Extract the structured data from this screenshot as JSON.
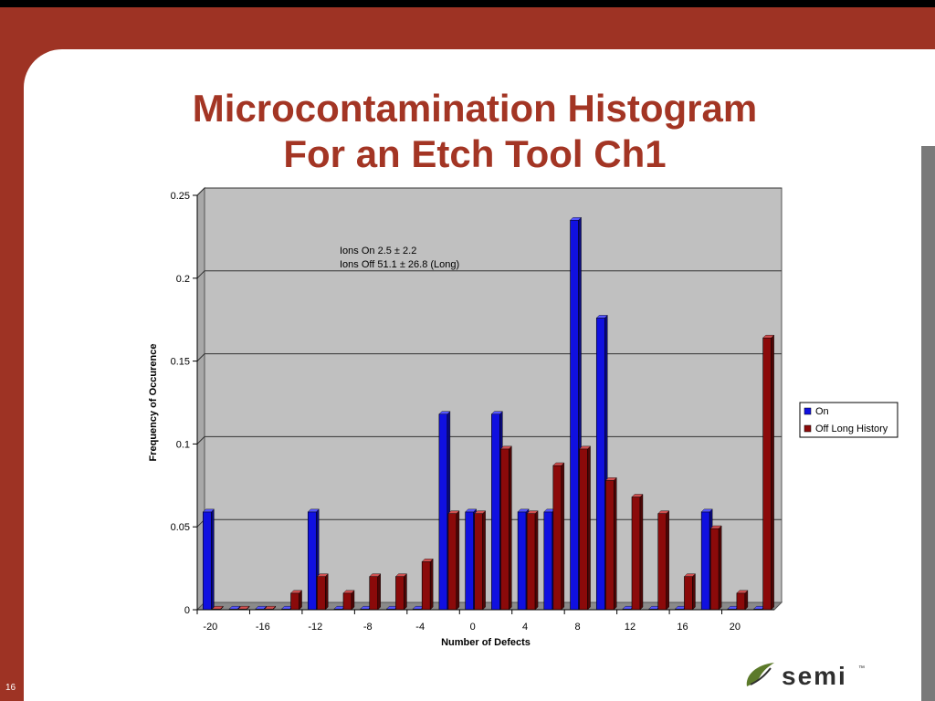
{
  "slide": {
    "title_line1": "Microcontamination Histogram",
    "title_line2": "For an Etch Tool Ch1",
    "slide_number": "16",
    "logo_text": "semi",
    "logo_icon": "leaf-swoosh-icon"
  },
  "colors": {
    "accent": "#9e3324",
    "title": "#a33524",
    "series_on": "#1010e0",
    "series_off": "#8b0a0a",
    "plot_bg": "#c0c0c0"
  },
  "chart_data": {
    "type": "bar",
    "title": "",
    "xlabel": "Number of Defects",
    "ylabel": "Frequency of Occurence",
    "ylim": [
      0,
      0.25
    ],
    "yticks": [
      "0",
      "0.05",
      "0.1",
      "0.15",
      "0.2",
      "0.25"
    ],
    "xtick_labels": [
      "-20",
      "-16",
      "-12",
      "-8",
      "-4",
      "0",
      "4",
      "8",
      "12",
      "16",
      "20"
    ],
    "categories": [
      -20,
      -18,
      -16,
      -14,
      -12,
      -10,
      -8,
      -6,
      -4,
      -2,
      0,
      2,
      4,
      6,
      8,
      10,
      12,
      14,
      16,
      18,
      20,
      22
    ],
    "series": [
      {
        "name": "On",
        "values": [
          0.059,
          0,
          0,
          0,
          0.059,
          0,
          0,
          0,
          0,
          0.118,
          0.059,
          0.118,
          0.059,
          0.059,
          0.235,
          0.176,
          0,
          0,
          0,
          0.059,
          0,
          0
        ]
      },
      {
        "name": "Off Long History",
        "values": [
          0,
          0,
          0,
          0.01,
          0.02,
          0.01,
          0.02,
          0.02,
          0.029,
          0.058,
          0.058,
          0.097,
          0.058,
          0.087,
          0.097,
          0.078,
          0.068,
          0.058,
          0.02,
          0.049,
          0.01,
          0.164
        ]
      }
    ],
    "annotations": [
      "Ions On 2.5 ±  2.2",
      "Ions Off 51.1 ± 26.8 (Long)"
    ],
    "grid": true,
    "legend_position": "right"
  }
}
